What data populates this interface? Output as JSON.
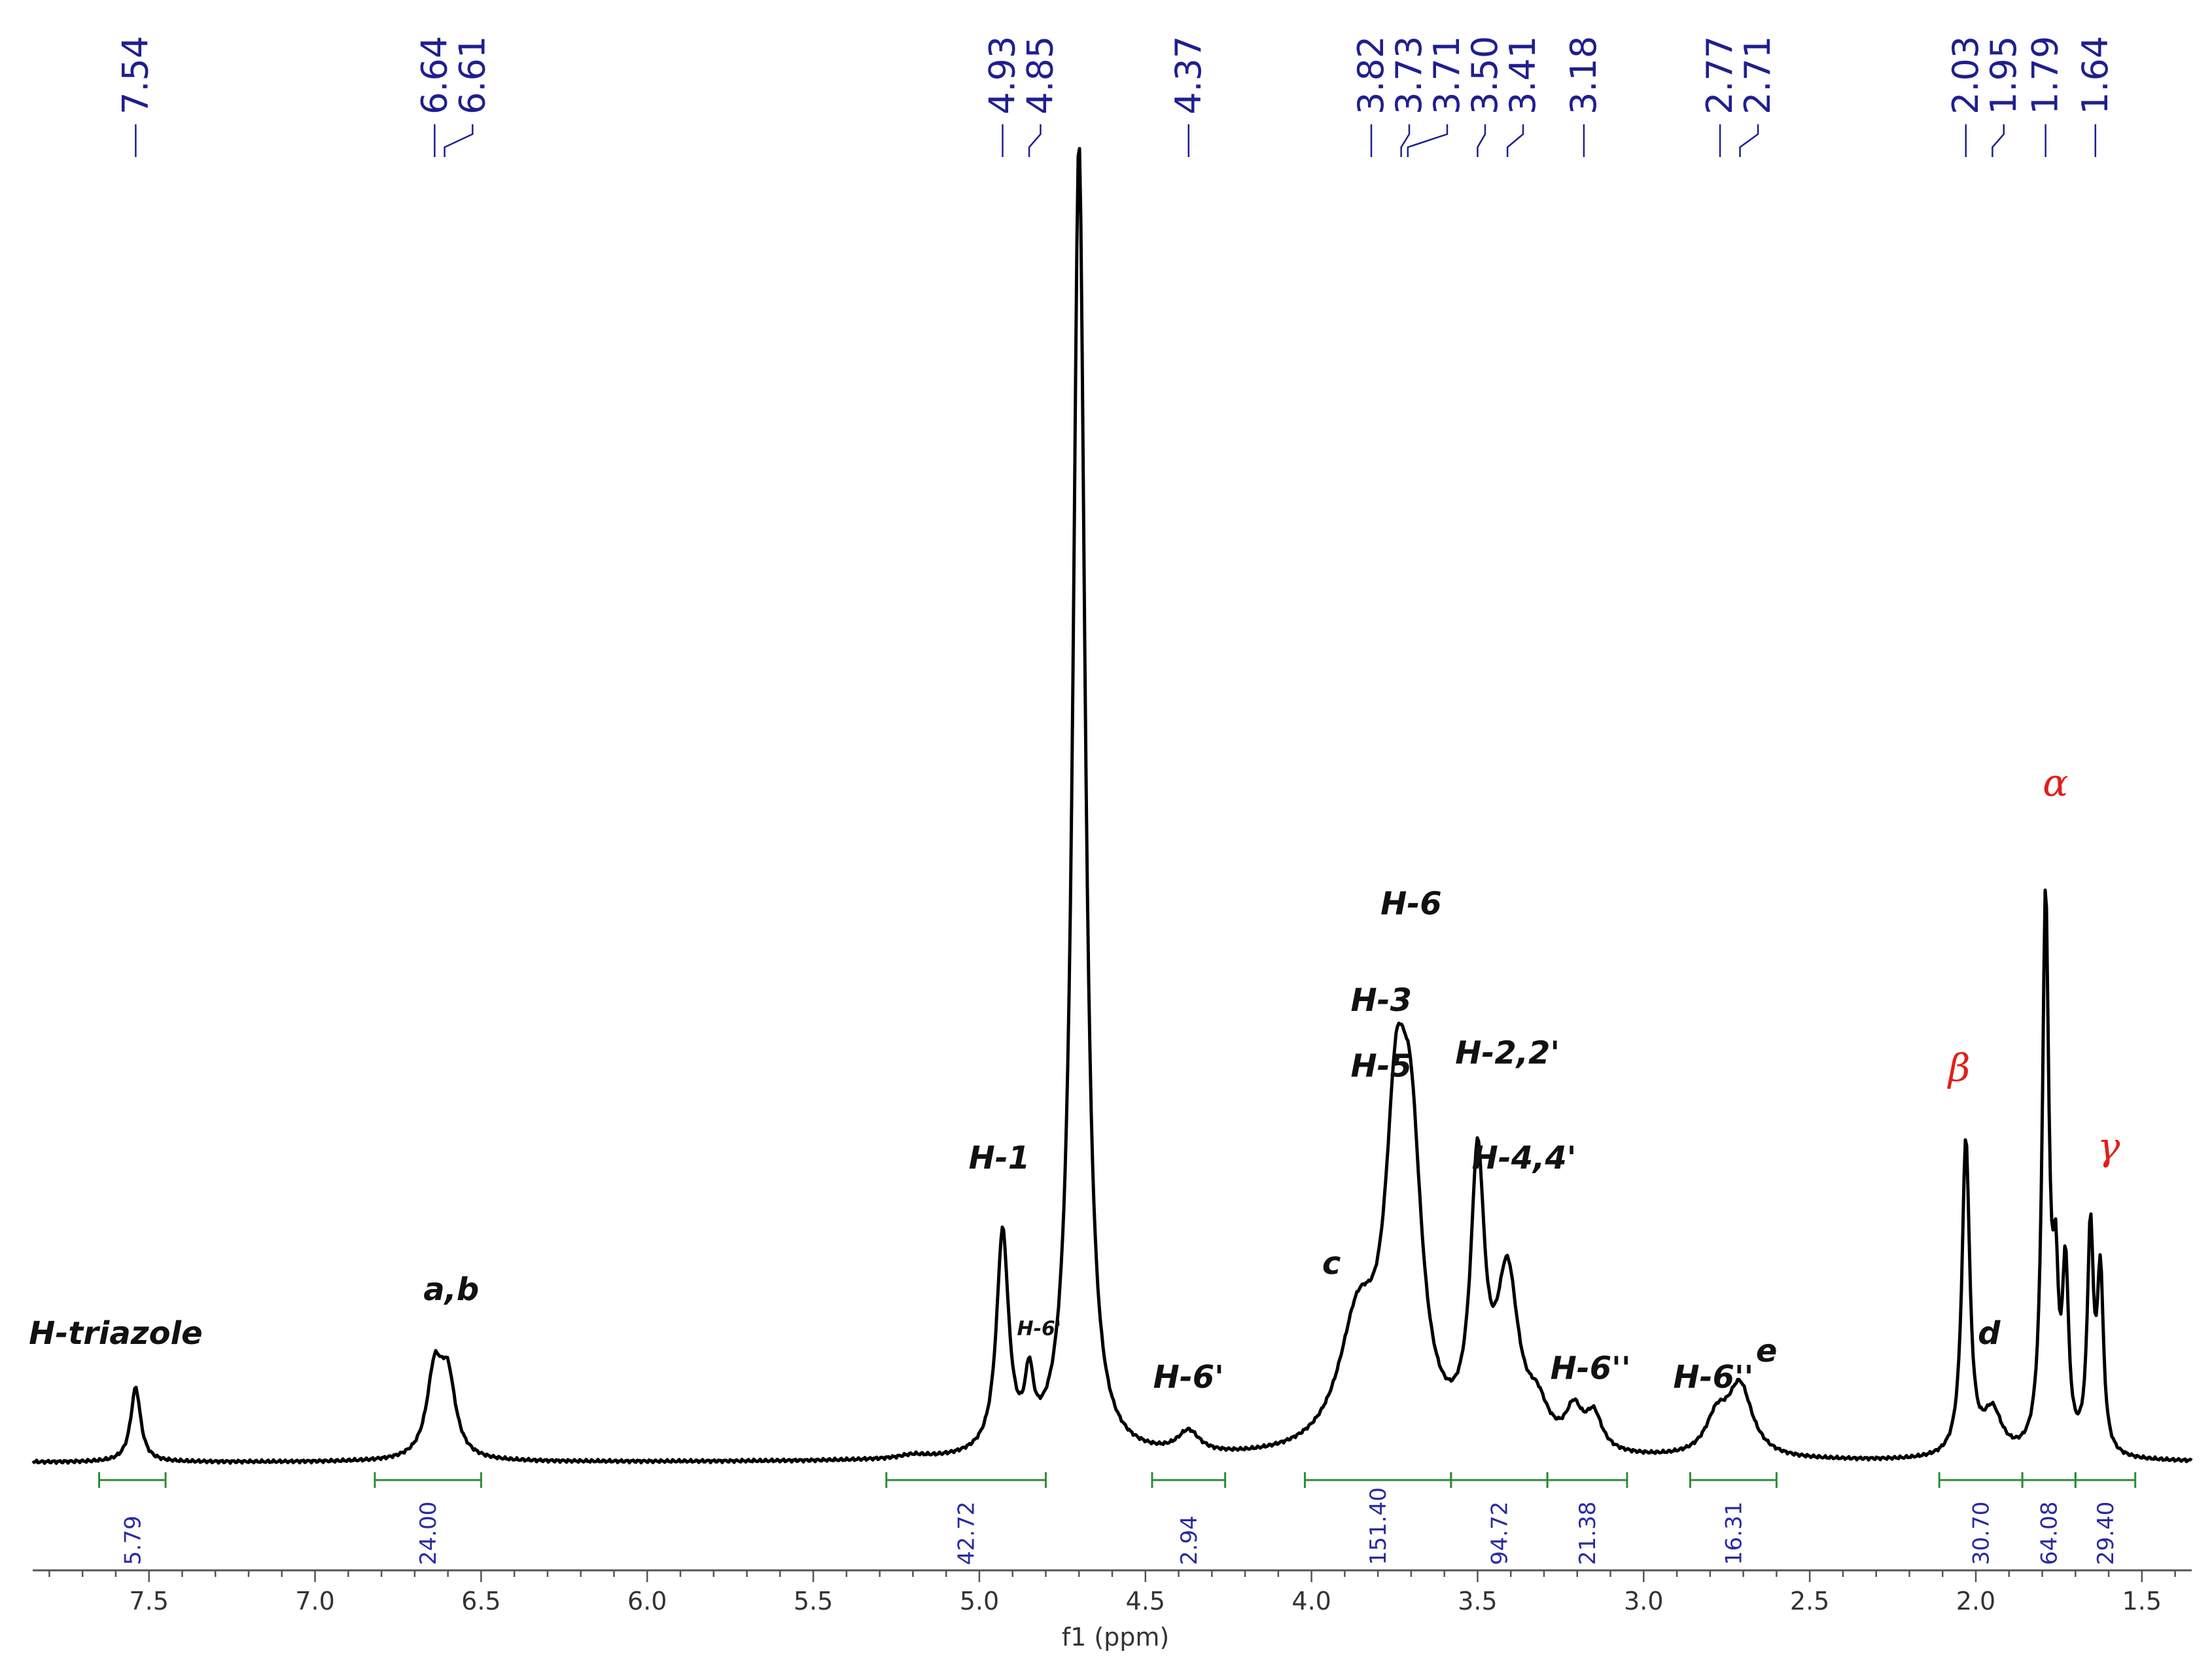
{
  "chart_data": {
    "type": "line",
    "xlabel": "f1 (ppm)",
    "xlim": [
      7.85,
      1.35
    ],
    "x_ticks": [
      "7.5",
      "7.0",
      "6.5",
      "6.0",
      "5.5",
      "5.0",
      "4.5",
      "4.0",
      "3.5",
      "3.0",
      "2.5",
      "2.0",
      "1.5"
    ],
    "peak_labels": [
      "7.54",
      "6.64",
      "6.61",
      "4.93",
      "4.85",
      "4.37",
      "3.82",
      "3.73",
      "3.71",
      "3.50",
      "3.41",
      "3.18",
      "2.77",
      "2.71",
      "2.03",
      "1.95",
      "1.79",
      "1.64"
    ],
    "integrals": [
      {
        "range": [
          7.65,
          7.45
        ],
        "value": "5.79"
      },
      {
        "range": [
          6.82,
          6.5
        ],
        "value": "24.00"
      },
      {
        "range": [
          5.28,
          4.8
        ],
        "value": "42.72"
      },
      {
        "range": [
          4.48,
          4.26
        ],
        "value": "2.94"
      },
      {
        "range": [
          4.02,
          3.58
        ],
        "value": "151.40"
      },
      {
        "range": [
          3.58,
          3.29
        ],
        "value": "94.72"
      },
      {
        "range": [
          3.29,
          3.05
        ],
        "value": "21.38"
      },
      {
        "range": [
          2.86,
          2.6
        ],
        "value": "16.31"
      },
      {
        "range": [
          2.11,
          1.86
        ],
        "value": "30.70"
      },
      {
        "range": [
          1.86,
          1.7
        ],
        "value": "64.08"
      },
      {
        "range": [
          1.7,
          1.52
        ],
        "value": "29.40"
      }
    ],
    "peaks": [
      {
        "x": 7.54,
        "height": 0.085,
        "width": 0.018
      },
      {
        "x": 6.64,
        "height": 0.095,
        "width": 0.028
      },
      {
        "x": 6.6,
        "height": 0.085,
        "width": 0.028
      },
      {
        "x": 5.2,
        "height": 0.004,
        "width": 0.05
      },
      {
        "x": 4.93,
        "height": 0.25,
        "width": 0.022
      },
      {
        "x": 4.85,
        "height": 0.07,
        "width": 0.015
      },
      {
        "x": 4.7,
        "height": 1.5,
        "width": 0.022
      },
      {
        "x": 4.37,
        "height": 0.025,
        "width": 0.04
      },
      {
        "x": 3.86,
        "height": 0.14,
        "width": 0.07
      },
      {
        "x": 3.745,
        "height": 0.32,
        "width": 0.04
      },
      {
        "x": 3.7,
        "height": 0.28,
        "width": 0.04
      },
      {
        "x": 3.5,
        "height": 0.31,
        "width": 0.025
      },
      {
        "x": 3.41,
        "height": 0.19,
        "width": 0.04
      },
      {
        "x": 3.32,
        "height": 0.04,
        "width": 0.04
      },
      {
        "x": 3.21,
        "height": 0.043,
        "width": 0.03
      },
      {
        "x": 3.15,
        "height": 0.04,
        "width": 0.03
      },
      {
        "x": 2.78,
        "height": 0.04,
        "width": 0.04
      },
      {
        "x": 2.71,
        "height": 0.08,
        "width": 0.045
      },
      {
        "x": 2.03,
        "height": 0.36,
        "width": 0.014
      },
      {
        "x": 1.95,
        "height": 0.05,
        "width": 0.035
      },
      {
        "x": 1.79,
        "height": 0.63,
        "width": 0.012
      },
      {
        "x": 1.76,
        "height": 0.16,
        "width": 0.01
      },
      {
        "x": 1.73,
        "height": 0.2,
        "width": 0.011
      },
      {
        "x": 1.655,
        "height": 0.25,
        "width": 0.011
      },
      {
        "x": 1.625,
        "height": 0.2,
        "width": 0.011
      }
    ],
    "annotations": [
      {
        "text": "H-triazole",
        "x": 7.6,
        "y": 0.135,
        "cls": "annot"
      },
      {
        "text": "a,b",
        "x": 6.59,
        "y": 0.185,
        "cls": "annot"
      },
      {
        "text": "H-1",
        "x": 4.94,
        "y": 0.335,
        "cls": "annot"
      },
      {
        "text": "H-6'",
        "x": 4.82,
        "y": 0.145,
        "cls": "annot-sm"
      },
      {
        "text": "H-6'",
        "x": 4.37,
        "y": 0.085,
        "cls": "annot"
      },
      {
        "text": "c",
        "x": 3.94,
        "y": 0.215,
        "cls": "annot"
      },
      {
        "text": "H-6",
        "x": 3.7,
        "y": 0.625,
        "cls": "annot"
      },
      {
        "text": "H-3",
        "x": 3.79,
        "y": 0.515,
        "cls": "annot"
      },
      {
        "text": "H-5",
        "x": 3.79,
        "y": 0.44,
        "cls": "annot"
      },
      {
        "text": "H-2,2'",
        "x": 3.41,
        "y": 0.455,
        "cls": "annot"
      },
      {
        "text": "H-4,4'",
        "x": 3.36,
        "y": 0.335,
        "cls": "annot"
      },
      {
        "text": "H-6''",
        "x": 3.16,
        "y": 0.095,
        "cls": "annot"
      },
      {
        "text": "H-6''",
        "x": 2.79,
        "y": 0.085,
        "cls": "annot"
      },
      {
        "text": "e",
        "x": 2.63,
        "y": 0.115,
        "cls": "annot"
      },
      {
        "text": "d",
        "x": 1.96,
        "y": 0.135,
        "cls": "annot"
      },
      {
        "text": "β",
        "x": 2.05,
        "y": 0.435,
        "cls": "greek"
      },
      {
        "text": "α",
        "x": 1.76,
        "y": 0.76,
        "cls": "greek"
      },
      {
        "text": "γ",
        "x": 1.6,
        "y": 0.345,
        "cls": "greek"
      }
    ],
    "colors": {
      "trace": "#000000",
      "peak_labels": "#1f1f8f",
      "integrals": "#2e8b3a",
      "greek": "#e0201b"
    }
  }
}
